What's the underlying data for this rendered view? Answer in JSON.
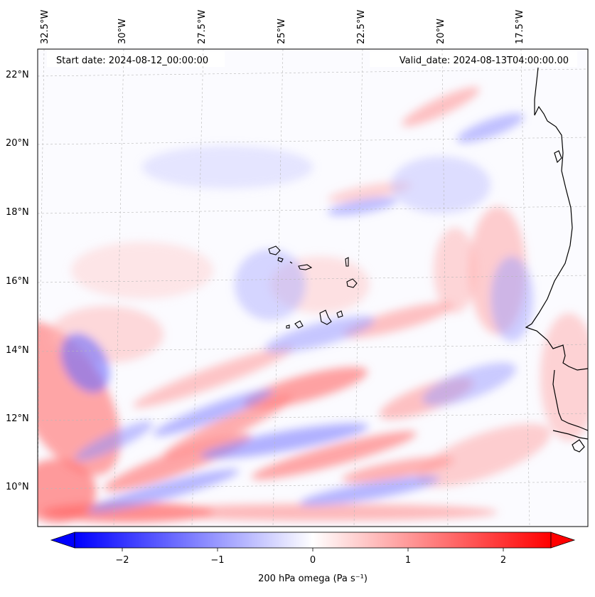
{
  "figure": {
    "start_date": "Start date: 2024-08-12_00:00:00",
    "valid_date": "Valid_date: 2024-08-13T04:00:00.00"
  },
  "map": {
    "lon_labels": [
      "32.5°W",
      "30°W",
      "27.5°W",
      "25°W",
      "22.5°W",
      "20°W",
      "17.5°W"
    ],
    "lat_labels": [
      "22°N",
      "20°N",
      "18°N",
      "16°N",
      "14°N",
      "12°N",
      "10°N"
    ],
    "features": [
      "Cape Verde islands",
      "West African coastline"
    ]
  },
  "colorbar": {
    "label": "200 hPa omega (Pa s⁻¹)",
    "ticks": [
      "−2",
      "−1",
      "0",
      "1",
      "2"
    ],
    "min": -2.7,
    "max": 2.7,
    "colormap": "bwr",
    "low_color": "#0000ff",
    "mid_color": "#ffffff",
    "high_color": "#ff0000"
  }
}
